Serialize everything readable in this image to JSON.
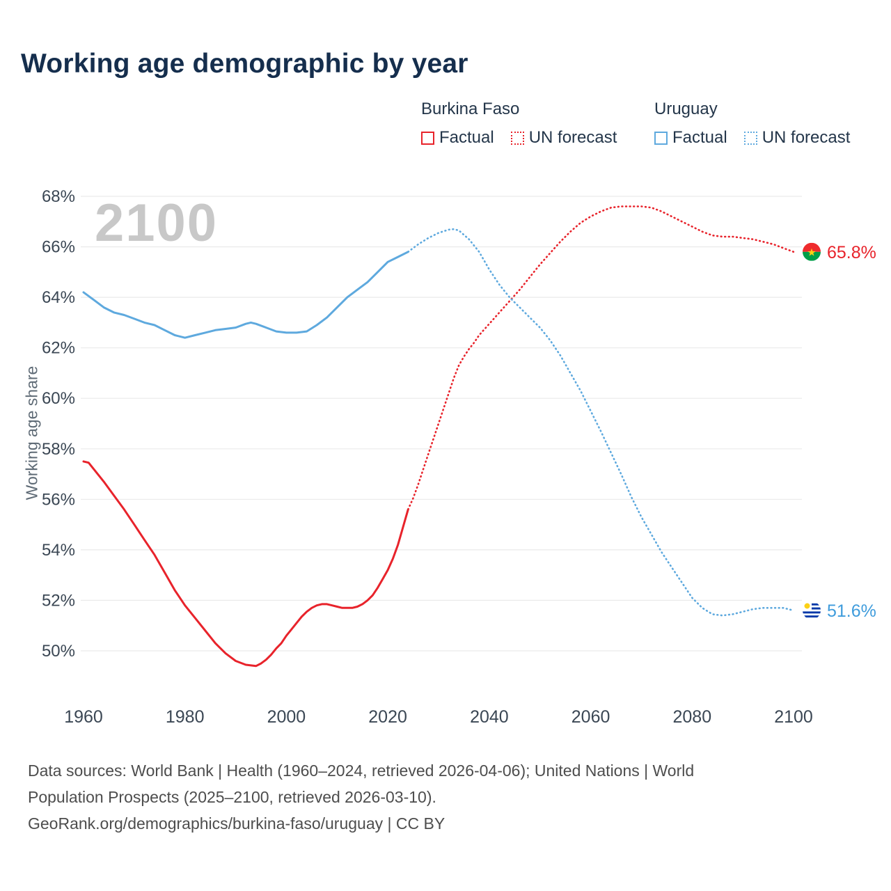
{
  "legend": {
    "groups": [
      {
        "country": "Burkina Faso",
        "color": "#e8232b",
        "items": [
          {
            "label": "Factual",
            "style": "solid"
          },
          {
            "label": "UN forecast",
            "style": "dotted"
          }
        ]
      },
      {
        "country": "Uruguay",
        "color": "#5ea9de",
        "items": [
          {
            "label": "Factual",
            "style": "solid"
          },
          {
            "label": "UN forecast",
            "style": "dotted"
          }
        ]
      }
    ]
  },
  "footer": {
    "lines": [
      "Data sources: World Bank | Health (1960–2024, retrieved 2026-04-06); United Nations | World",
      "Population Prospects (2025–2100, retrieved 2026-03-10).",
      "GeoRank.org/demographics/burkina-faso/uruguay | CC BY"
    ]
  },
  "chart_data": {
    "type": "line",
    "title": "Working age demographic by year",
    "ylabel": "Working age share",
    "xlabel": "",
    "watermark": "2100",
    "grid": true,
    "legend_position": "top-right",
    "xlim": [
      1960,
      2100
    ],
    "ylim": [
      50,
      68
    ],
    "yticks": [
      {
        "v": 50,
        "label": "50%"
      },
      {
        "v": 52,
        "label": "52%"
      },
      {
        "v": 54,
        "label": "54%"
      },
      {
        "v": 56,
        "label": "56%"
      },
      {
        "v": 58,
        "label": "58%"
      },
      {
        "v": 60,
        "label": "60%"
      },
      {
        "v": 62,
        "label": "62%"
      },
      {
        "v": 64,
        "label": "64%"
      },
      {
        "v": 66,
        "label": "66%"
      },
      {
        "v": 68,
        "label": "68%"
      }
    ],
    "xticks": [
      {
        "v": 1960,
        "label": "1960"
      },
      {
        "v": 1980,
        "label": "1980"
      },
      {
        "v": 2000,
        "label": "2000"
      },
      {
        "v": 2020,
        "label": "2020"
      },
      {
        "v": 2040,
        "label": "2040"
      },
      {
        "v": 2060,
        "label": "2060"
      },
      {
        "v": 2080,
        "label": "2080"
      },
      {
        "v": 2100,
        "label": "2100"
      }
    ],
    "series": [
      {
        "id": "burkina-faso-factual",
        "name": "Burkina Faso — Factual",
        "color": "#e8232b",
        "style": "solid",
        "points": [
          [
            1960,
            57.5
          ],
          [
            1961,
            57.45
          ],
          [
            1962,
            57.2
          ],
          [
            1964,
            56.7
          ],
          [
            1966,
            56.15
          ],
          [
            1968,
            55.6
          ],
          [
            1970,
            55.0
          ],
          [
            1972,
            54.4
          ],
          [
            1974,
            53.8
          ],
          [
            1976,
            53.1
          ],
          [
            1978,
            52.4
          ],
          [
            1980,
            51.8
          ],
          [
            1982,
            51.3
          ],
          [
            1984,
            50.8
          ],
          [
            1986,
            50.3
          ],
          [
            1988,
            49.9
          ],
          [
            1990,
            49.6
          ],
          [
            1992,
            49.45
          ],
          [
            1994,
            49.4
          ],
          [
            1995,
            49.5
          ],
          [
            1996,
            49.65
          ],
          [
            1997,
            49.85
          ],
          [
            1998,
            50.1
          ],
          [
            1999,
            50.3
          ],
          [
            2000,
            50.6
          ],
          [
            2001,
            50.85
          ],
          [
            2002,
            51.1
          ],
          [
            2003,
            51.35
          ],
          [
            2004,
            51.55
          ],
          [
            2005,
            51.7
          ],
          [
            2006,
            51.8
          ],
          [
            2007,
            51.85
          ],
          [
            2008,
            51.85
          ],
          [
            2009,
            51.8
          ],
          [
            2010,
            51.75
          ],
          [
            2011,
            51.7
          ],
          [
            2012,
            51.7
          ],
          [
            2013,
            51.7
          ],
          [
            2014,
            51.75
          ],
          [
            2015,
            51.85
          ],
          [
            2016,
            52.0
          ],
          [
            2017,
            52.2
          ],
          [
            2018,
            52.5
          ],
          [
            2019,
            52.85
          ],
          [
            2020,
            53.2
          ],
          [
            2021,
            53.65
          ],
          [
            2022,
            54.2
          ],
          [
            2023,
            54.9
          ],
          [
            2024,
            55.6
          ]
        ]
      },
      {
        "id": "burkina-faso-forecast",
        "name": "Burkina Faso — UN forecast",
        "color": "#e8232b",
        "style": "dotted",
        "points": [
          [
            2024,
            55.6
          ],
          [
            2025,
            56.05
          ],
          [
            2026,
            56.6
          ],
          [
            2027,
            57.2
          ],
          [
            2028,
            57.8
          ],
          [
            2029,
            58.4
          ],
          [
            2030,
            59.0
          ],
          [
            2031,
            59.6
          ],
          [
            2032,
            60.2
          ],
          [
            2033,
            60.8
          ],
          [
            2034,
            61.3
          ],
          [
            2035,
            61.65
          ],
          [
            2036,
            61.95
          ],
          [
            2037,
            62.2
          ],
          [
            2038,
            62.5
          ],
          [
            2040,
            62.95
          ],
          [
            2042,
            63.4
          ],
          [
            2044,
            63.85
          ],
          [
            2046,
            64.3
          ],
          [
            2048,
            64.8
          ],
          [
            2050,
            65.3
          ],
          [
            2052,
            65.75
          ],
          [
            2054,
            66.2
          ],
          [
            2056,
            66.6
          ],
          [
            2058,
            66.95
          ],
          [
            2060,
            67.2
          ],
          [
            2062,
            67.4
          ],
          [
            2064,
            67.55
          ],
          [
            2066,
            67.6
          ],
          [
            2068,
            67.6
          ],
          [
            2070,
            67.6
          ],
          [
            2072,
            67.55
          ],
          [
            2074,
            67.4
          ],
          [
            2076,
            67.2
          ],
          [
            2078,
            67.0
          ],
          [
            2080,
            66.8
          ],
          [
            2082,
            66.6
          ],
          [
            2084,
            66.45
          ],
          [
            2086,
            66.4
          ],
          [
            2088,
            66.4
          ],
          [
            2090,
            66.35
          ],
          [
            2092,
            66.3
          ],
          [
            2094,
            66.2
          ],
          [
            2096,
            66.1
          ],
          [
            2098,
            65.95
          ],
          [
            2100,
            65.8
          ]
        ]
      },
      {
        "id": "uruguay-factual",
        "name": "Uruguay — Factual",
        "color": "#5ea9de",
        "style": "solid",
        "points": [
          [
            1960,
            64.2
          ],
          [
            1962,
            63.9
          ],
          [
            1964,
            63.6
          ],
          [
            1966,
            63.4
          ],
          [
            1968,
            63.3
          ],
          [
            1970,
            63.15
          ],
          [
            1972,
            63.0
          ],
          [
            1974,
            62.9
          ],
          [
            1976,
            62.7
          ],
          [
            1978,
            62.5
          ],
          [
            1980,
            62.4
          ],
          [
            1982,
            62.5
          ],
          [
            1984,
            62.6
          ],
          [
            1986,
            62.7
          ],
          [
            1988,
            62.75
          ],
          [
            1990,
            62.8
          ],
          [
            1992,
            62.95
          ],
          [
            1993,
            63.0
          ],
          [
            1994,
            62.95
          ],
          [
            1996,
            62.8
          ],
          [
            1998,
            62.65
          ],
          [
            2000,
            62.6
          ],
          [
            2002,
            62.6
          ],
          [
            2004,
            62.65
          ],
          [
            2006,
            62.9
          ],
          [
            2008,
            63.2
          ],
          [
            2010,
            63.6
          ],
          [
            2012,
            64.0
          ],
          [
            2014,
            64.3
          ],
          [
            2016,
            64.6
          ],
          [
            2018,
            65.0
          ],
          [
            2020,
            65.4
          ],
          [
            2022,
            65.6
          ],
          [
            2024,
            65.8
          ]
        ]
      },
      {
        "id": "uruguay-forecast",
        "name": "Uruguay — UN forecast",
        "color": "#5ea9de",
        "style": "dotted",
        "points": [
          [
            2024,
            65.8
          ],
          [
            2026,
            66.1
          ],
          [
            2028,
            66.35
          ],
          [
            2030,
            66.55
          ],
          [
            2032,
            66.68
          ],
          [
            2033,
            66.7
          ],
          [
            2034,
            66.65
          ],
          [
            2036,
            66.3
          ],
          [
            2038,
            65.8
          ],
          [
            2040,
            65.1
          ],
          [
            2042,
            64.5
          ],
          [
            2044,
            64.0
          ],
          [
            2046,
            63.6
          ],
          [
            2048,
            63.2
          ],
          [
            2050,
            62.8
          ],
          [
            2052,
            62.3
          ],
          [
            2054,
            61.7
          ],
          [
            2056,
            61.0
          ],
          [
            2058,
            60.3
          ],
          [
            2060,
            59.5
          ],
          [
            2062,
            58.7
          ],
          [
            2064,
            57.85
          ],
          [
            2066,
            57.0
          ],
          [
            2068,
            56.1
          ],
          [
            2070,
            55.3
          ],
          [
            2072,
            54.6
          ],
          [
            2074,
            53.9
          ],
          [
            2076,
            53.3
          ],
          [
            2078,
            52.7
          ],
          [
            2080,
            52.1
          ],
          [
            2082,
            51.7
          ],
          [
            2084,
            51.45
          ],
          [
            2086,
            51.4
          ],
          [
            2088,
            51.45
          ],
          [
            2090,
            51.55
          ],
          [
            2092,
            51.65
          ],
          [
            2094,
            51.7
          ],
          [
            2096,
            51.7
          ],
          [
            2098,
            51.7
          ],
          [
            2100,
            51.6
          ]
        ]
      }
    ],
    "end_labels": [
      {
        "country": "Burkina Faso",
        "flag": "burkina-faso",
        "text": "65.8%",
        "value": 65.8,
        "color": "#e8232b"
      },
      {
        "country": "Uruguay",
        "flag": "uruguay",
        "text": "51.6%",
        "value": 51.6,
        "color": "#3f9cdc"
      }
    ]
  }
}
